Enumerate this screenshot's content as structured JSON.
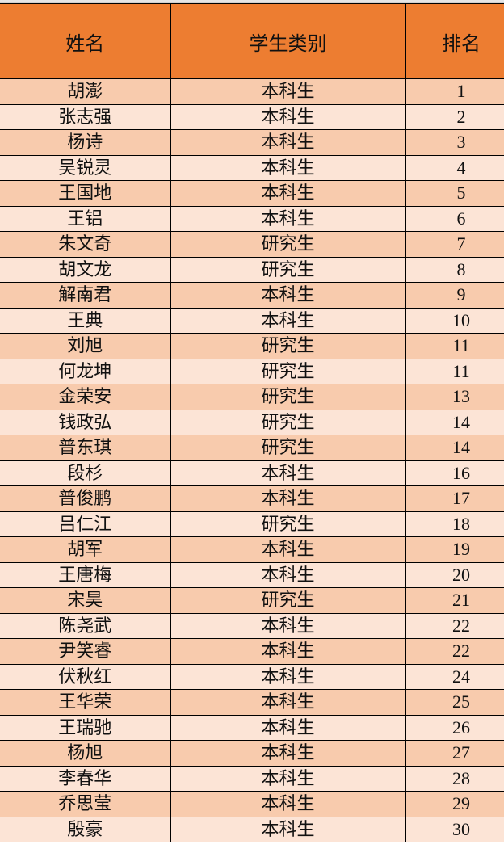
{
  "headers": [
    "姓名",
    "学生类别",
    "排名"
  ],
  "colors": {
    "header": "#ED7D31",
    "row_odd": "#F8CBAD",
    "row_even": "#FCE4D6"
  },
  "rows": [
    [
      "胡澎",
      "本科生",
      "1"
    ],
    [
      "张志强",
      "本科生",
      "2"
    ],
    [
      "杨诗",
      "本科生",
      "3"
    ],
    [
      "吴锐灵",
      "本科生",
      "4"
    ],
    [
      "王国地",
      "本科生",
      "5"
    ],
    [
      "王铝",
      "本科生",
      "6"
    ],
    [
      "朱文奇",
      "研究生",
      "7"
    ],
    [
      "胡文龙",
      "研究生",
      "8"
    ],
    [
      "解南君",
      "本科生",
      "9"
    ],
    [
      "王典",
      "本科生",
      "10"
    ],
    [
      "刘旭",
      "研究生",
      "11"
    ],
    [
      "何龙坤",
      "研究生",
      "11"
    ],
    [
      "金荣安",
      "研究生",
      "13"
    ],
    [
      "钱政弘",
      "研究生",
      "14"
    ],
    [
      "普东琪",
      "研究生",
      "14"
    ],
    [
      "段杉",
      "本科生",
      "16"
    ],
    [
      "普俊鹏",
      "本科生",
      "17"
    ],
    [
      "吕仁江",
      "研究生",
      "18"
    ],
    [
      "胡军",
      "本科生",
      "19"
    ],
    [
      "王唐梅",
      "本科生",
      "20"
    ],
    [
      "宋昊",
      "研究生",
      "21"
    ],
    [
      "陈尧武",
      "本科生",
      "22"
    ],
    [
      "尹笑睿",
      "本科生",
      "22"
    ],
    [
      "伏秋红",
      "本科生",
      "24"
    ],
    [
      "王华荣",
      "本科生",
      "25"
    ],
    [
      "王瑞驰",
      "本科生",
      "26"
    ],
    [
      "杨旭",
      "本科生",
      "27"
    ],
    [
      "李春华",
      "本科生",
      "28"
    ],
    [
      "乔思莹",
      "本科生",
      "29"
    ],
    [
      "殷豪",
      "本科生",
      "30"
    ]
  ]
}
